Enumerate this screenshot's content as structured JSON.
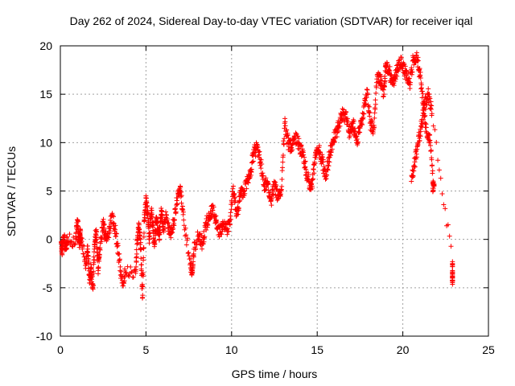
{
  "chart_data": {
    "type": "scatter",
    "title": "Day 262 of 2024, Sidereal Day-to-day VTEC variation (SDTVAR) for receiver iqal",
    "xlabel": "GPS time / hours",
    "ylabel": "SDTVAR / TECUs",
    "xlim": [
      0,
      25
    ],
    "ylim": [
      -10,
      20
    ],
    "x_ticks": [
      0,
      5,
      10,
      15,
      20,
      25
    ],
    "y_ticks": [
      -10,
      -5,
      0,
      5,
      10,
      15,
      20
    ],
    "grid": true,
    "marker": "+",
    "marker_color": "#ff0000",
    "series": [
      {
        "name": "SDTVAR",
        "x": [
          0.05,
          0.1,
          0.2,
          0.3,
          0.4,
          0.9,
          1.0,
          1.1,
          1.15,
          1.2,
          1.5,
          1.6,
          1.7,
          1.8,
          1.9,
          2.0,
          2.1,
          2.2,
          2.3,
          2.5,
          2.6,
          2.8,
          3.0,
          3.2,
          3.4,
          3.6,
          3.8,
          4.4,
          4.5,
          4.6,
          4.7,
          4.8,
          4.9,
          5.0,
          5.1,
          5.2,
          5.3,
          5.4,
          5.5,
          5.6,
          5.7,
          5.8,
          5.9,
          6.0,
          6.2,
          6.4,
          6.6,
          6.8,
          7.0,
          7.2,
          7.6,
          7.7,
          7.8,
          8.1,
          8.3,
          8.5,
          8.7,
          8.9,
          9.1,
          9.3,
          9.5,
          9.7,
          9.9,
          10.1,
          10.3,
          10.5,
          10.7,
          10.9,
          11.1,
          11.3,
          11.5,
          11.7,
          11.9,
          12.1,
          12.3,
          12.5,
          12.7,
          12.9,
          13.1,
          13.3,
          13.5,
          13.7,
          13.9,
          14.1,
          14.3,
          14.5,
          14.7,
          14.9,
          15.1,
          15.3,
          15.5,
          15.7,
          15.9,
          16.1,
          16.3,
          16.5,
          16.7,
          16.9,
          17.1,
          17.3,
          17.5,
          17.7,
          17.9,
          18.1,
          18.3,
          18.5,
          18.7,
          18.9,
          19.0,
          19.2,
          19.4,
          19.6,
          19.8,
          20.0,
          20.2,
          20.4,
          20.6,
          20.8,
          21.0,
          21.2,
          21.4,
          21.6,
          21.8,
          20.5,
          20.7,
          20.9,
          21.1,
          21.3,
          21.5,
          21.7,
          22.9,
          22.9
        ],
        "y": [
          -0.5,
          -1.5,
          0.3,
          -1.0,
          -0.2,
          0.0,
          2.0,
          -0.3,
          0.5,
          0.2,
          -2.5,
          -1.0,
          -4.5,
          -3.0,
          -5.0,
          -0.5,
          1.0,
          -3.0,
          -1.0,
          1.8,
          0.5,
          0.2,
          2.5,
          1.0,
          -1.5,
          -4.5,
          -3.5,
          -3.5,
          0.0,
          1.5,
          -1.0,
          -6.0,
          2.0,
          4.5,
          2.5,
          0.0,
          3.0,
          1.5,
          -0.2,
          2.0,
          1.0,
          0.5,
          3.0,
          1.0,
          2.5,
          0.5,
          1.5,
          4.0,
          5.5,
          2.0,
          -2.5,
          -3.5,
          -1.0,
          0.5,
          -0.5,
          1.5,
          2.5,
          3.0,
          2.0,
          0.5,
          1.5,
          1.0,
          1.5,
          5.5,
          2.5,
          4.5,
          5.0,
          6.0,
          7.0,
          9.0,
          9.5,
          8.0,
          5.5,
          6.0,
          4.0,
          5.5,
          4.5,
          5.0,
          12.0,
          10.0,
          9.5,
          10.5,
          10.0,
          9.0,
          7.5,
          6.0,
          5.5,
          9.0,
          9.5,
          8.0,
          6.5,
          8.5,
          10.0,
          11.0,
          12.0,
          13.0,
          12.5,
          11.0,
          12.0,
          10.0,
          11.5,
          13.0,
          15.5,
          12.0,
          11.5,
          17.0,
          16.5,
          15.0,
          18.0,
          17.5,
          16.0,
          17.0,
          18.5,
          18.0,
          17.0,
          16.0,
          18.5,
          19.0,
          17.0,
          14.0,
          11.0,
          10.0,
          5.5,
          6.0,
          8.0,
          10.0,
          12.0,
          14.0,
          15.0,
          13.0,
          -2.5,
          -4.0
        ]
      }
    ]
  }
}
